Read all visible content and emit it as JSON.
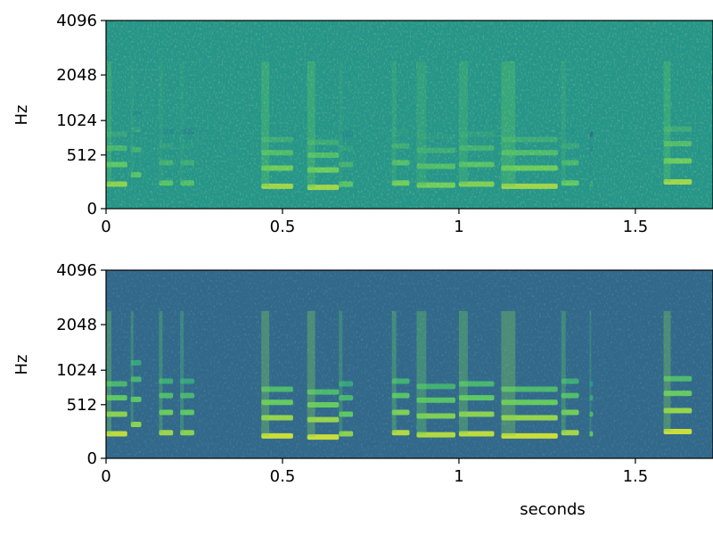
{
  "chart_data": [
    {
      "type": "heatmap",
      "title": "",
      "xlabel": "",
      "ylabel": "Hz",
      "xlim": [
        0,
        1.72
      ],
      "ylim": [
        0,
        4096
      ],
      "y_scale": "mel",
      "colormap": "viridis",
      "x_ticks": [
        {
          "value": 0,
          "label": "0"
        },
        {
          "value": 0.5,
          "label": "0.5"
        },
        {
          "value": 1,
          "label": "1"
        },
        {
          "value": 1.5,
          "label": "1.5"
        }
      ],
      "y_ticks": [
        {
          "value": 0,
          "label": "0"
        },
        {
          "value": 512,
          "label": "512"
        },
        {
          "value": 1024,
          "label": "1024"
        },
        {
          "value": 2048,
          "label": "2048"
        },
        {
          "value": 4096,
          "label": "4096"
        }
      ],
      "background_level": 0.52,
      "calls": [
        {
          "start": 0.0,
          "end": 0.06,
          "f0": 200,
          "level": 0.82
        },
        {
          "start": 0.07,
          "end": 0.1,
          "f0": 290,
          "level": 0.72
        },
        {
          "start": 0.15,
          "end": 0.19,
          "f0": 210,
          "level": 0.72
        },
        {
          "start": 0.21,
          "end": 0.25,
          "f0": 210,
          "level": 0.7
        },
        {
          "start": 0.44,
          "end": 0.53,
          "f0": 180,
          "level": 0.85
        },
        {
          "start": 0.57,
          "end": 0.66,
          "f0": 170,
          "level": 0.85
        },
        {
          "start": 0.66,
          "end": 0.7,
          "f0": 200,
          "level": 0.72
        },
        {
          "start": 0.81,
          "end": 0.86,
          "f0": 210,
          "level": 0.78
        },
        {
          "start": 0.88,
          "end": 0.99,
          "f0": 190,
          "level": 0.78
        },
        {
          "start": 1.0,
          "end": 1.1,
          "f0": 200,
          "level": 0.8
        },
        {
          "start": 1.12,
          "end": 1.28,
          "f0": 180,
          "level": 0.85
        },
        {
          "start": 1.29,
          "end": 1.34,
          "f0": 210,
          "level": 0.75
        },
        {
          "start": 1.37,
          "end": 1.38,
          "f0": 200,
          "level": 0.6
        },
        {
          "start": 1.58,
          "end": 1.66,
          "f0": 220,
          "level": 0.85
        }
      ]
    },
    {
      "type": "heatmap",
      "title": "",
      "xlabel": "seconds",
      "ylabel": "Hz",
      "xlim": [
        0,
        1.72
      ],
      "ylim": [
        0,
        4096
      ],
      "y_scale": "mel",
      "colormap": "viridis",
      "x_ticks": [
        {
          "value": 0,
          "label": "0"
        },
        {
          "value": 0.5,
          "label": "0.5"
        },
        {
          "value": 1,
          "label": "1"
        },
        {
          "value": 1.5,
          "label": "1.5"
        }
      ],
      "y_ticks": [
        {
          "value": 0,
          "label": "0"
        },
        {
          "value": 512,
          "label": "512"
        },
        {
          "value": 1024,
          "label": "1024"
        },
        {
          "value": 2048,
          "label": "2048"
        },
        {
          "value": 4096,
          "label": "4096"
        }
      ],
      "background_level": 0.34,
      "calls": [
        {
          "start": 0.0,
          "end": 0.06,
          "f0": 200,
          "level": 0.9
        },
        {
          "start": 0.07,
          "end": 0.1,
          "f0": 290,
          "level": 0.82
        },
        {
          "start": 0.15,
          "end": 0.19,
          "f0": 210,
          "level": 0.85
        },
        {
          "start": 0.21,
          "end": 0.25,
          "f0": 210,
          "level": 0.82
        },
        {
          "start": 0.44,
          "end": 0.53,
          "f0": 180,
          "level": 0.92
        },
        {
          "start": 0.57,
          "end": 0.66,
          "f0": 170,
          "level": 0.92
        },
        {
          "start": 0.66,
          "end": 0.7,
          "f0": 200,
          "level": 0.82
        },
        {
          "start": 0.81,
          "end": 0.86,
          "f0": 210,
          "level": 0.88
        },
        {
          "start": 0.88,
          "end": 0.99,
          "f0": 190,
          "level": 0.88
        },
        {
          "start": 1.0,
          "end": 1.1,
          "f0": 200,
          "level": 0.9
        },
        {
          "start": 1.12,
          "end": 1.28,
          "f0": 180,
          "level": 0.92
        },
        {
          "start": 1.29,
          "end": 1.34,
          "f0": 210,
          "level": 0.86
        },
        {
          "start": 1.37,
          "end": 1.38,
          "f0": 200,
          "level": 0.75
        },
        {
          "start": 1.58,
          "end": 1.66,
          "f0": 220,
          "level": 0.92
        }
      ]
    }
  ]
}
